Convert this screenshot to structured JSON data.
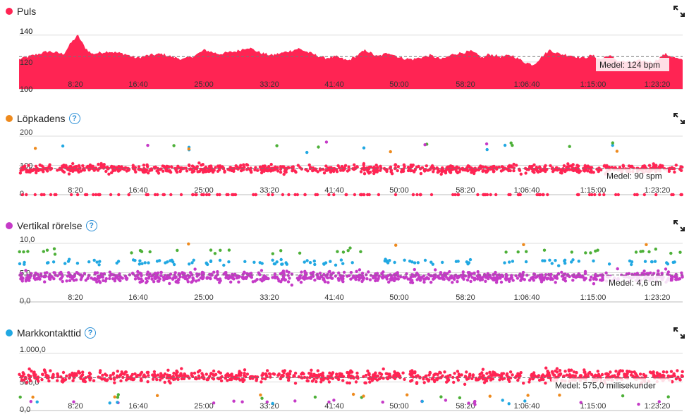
{
  "x_tick_labels": [
    "8:20",
    "16:40",
    "25:00",
    "33:20",
    "41:40",
    "50:00",
    "58:20",
    "1:06:40",
    "1:15:00",
    "1:23:20"
  ],
  "colors": {
    "pink": "#ff2453",
    "orange": "#ee8a1d",
    "green": "#4db038",
    "blue": "#21a8e2",
    "purple": "#c53ac7"
  },
  "panels": [
    {
      "title": "Puls",
      "color": "#ff2453",
      "help": false,
      "y_ticks": [
        "140",
        "120",
        "100"
      ],
      "avg_label": "Medel: 124 bpm"
    },
    {
      "title": "Löpkadens",
      "color": "#ee8a1d",
      "help": true,
      "y_ticks": [
        "200",
        "100",
        "0"
      ],
      "avg_label": "Medel: 90 spm"
    },
    {
      "title": "Vertikal rörelse",
      "color": "#c53ac7",
      "help": true,
      "y_ticks": [
        "10,0",
        "5,0",
        "0,0"
      ],
      "avg_label": "Medel: 4,6 cm"
    },
    {
      "title": "Markkontakttid",
      "color": "#21a8e2",
      "help": true,
      "y_ticks": [
        "1.000,0",
        "500,0",
        "0,0"
      ],
      "avg_label": "Medel: 575,0 millisekunder"
    }
  ],
  "chart_data": [
    {
      "type": "area",
      "title": "Puls",
      "x_unit": "tid",
      "x_range_seconds": [
        0,
        5650
      ],
      "ylim": [
        100,
        142
      ],
      "average": 124,
      "avg_label": "Medel: 124 bpm",
      "x_ticks": [
        "8:20",
        "16:40",
        "25:00",
        "33:20",
        "41:40",
        "50:00",
        "58:20",
        "1:06:40",
        "1:15:00",
        "1:23:20"
      ],
      "y_ticks": [
        140,
        120,
        100
      ],
      "keypoints": [
        [
          0,
          122
        ],
        [
          120,
          125
        ],
        [
          250,
          128
        ],
        [
          380,
          126
        ],
        [
          440,
          134
        ],
        [
          500,
          140
        ],
        [
          560,
          131
        ],
        [
          620,
          126
        ],
        [
          760,
          128
        ],
        [
          900,
          126
        ],
        [
          1000,
          123
        ],
        [
          1100,
          125
        ],
        [
          1220,
          126
        ],
        [
          1300,
          124
        ],
        [
          1400,
          122
        ],
        [
          1500,
          125
        ],
        [
          1580,
          129
        ],
        [
          1700,
          126
        ],
        [
          1850,
          128
        ],
        [
          1950,
          131
        ],
        [
          2050,
          127
        ],
        [
          2150,
          125
        ],
        [
          2250,
          127
        ],
        [
          2380,
          130
        ],
        [
          2500,
          126
        ],
        [
          2600,
          123
        ],
        [
          2700,
          124
        ],
        [
          2800,
          121
        ],
        [
          2880,
          125
        ],
        [
          2950,
          129
        ],
        [
          3050,
          124
        ],
        [
          3150,
          127
        ],
        [
          3250,
          123
        ],
        [
          3350,
          122
        ],
        [
          3500,
          125
        ],
        [
          3600,
          122
        ],
        [
          3700,
          126
        ],
        [
          3850,
          128
        ],
        [
          3950,
          123
        ],
        [
          4000,
          126
        ],
        [
          4100,
          124
        ],
        [
          4200,
          125
        ],
        [
          4300,
          120
        ],
        [
          4380,
          118
        ],
        [
          4450,
          124
        ],
        [
          4520,
          129
        ],
        [
          4600,
          126
        ],
        [
          4700,
          125
        ],
        [
          4800,
          123
        ],
        [
          4880,
          125
        ],
        [
          4950,
          122
        ],
        [
          5020,
          125
        ],
        [
          5100,
          121
        ],
        [
          5200,
          120
        ],
        [
          5300,
          121
        ],
        [
          5400,
          120
        ],
        [
          5450,
          123
        ],
        [
          5500,
          126
        ],
        [
          5560,
          124
        ],
        [
          5650,
          121
        ]
      ]
    },
    {
      "type": "scatter",
      "title": "Löpkadens",
      "ylim": [
        0,
        200
      ],
      "average": 90,
      "avg_label": "Medel: 90 spm",
      "x_ticks": [
        "8:20",
        "16:40",
        "25:00",
        "33:20",
        "41:40",
        "50:00",
        "58:20",
        "1:06:40",
        "1:15:00",
        "1:23:20"
      ],
      "y_ticks": [
        200,
        100,
        0
      ],
      "series": [
        {
          "color": "#ff2453",
          "count": 900,
          "center": 88,
          "spread": 14
        },
        {
          "color": "#ff2453",
          "count": 120,
          "fixed_value": 0
        },
        {
          "color": "#21a8e2",
          "count": 8,
          "center": 160,
          "spread": 12
        },
        {
          "color": "#4db038",
          "count": 8,
          "center": 170,
          "spread": 12
        },
        {
          "color": "#ee8a1d",
          "count": 4,
          "center": 155,
          "spread": 10
        },
        {
          "color": "#c53ac7",
          "count": 4,
          "center": 170,
          "spread": 15
        }
      ]
    },
    {
      "type": "scatter",
      "title": "Vertikal rörelse",
      "ylim": [
        0,
        10
      ],
      "average": 4.6,
      "avg_label": "Medel: 4,6 cm",
      "x_ticks": [
        "8:20",
        "16:40",
        "25:00",
        "33:20",
        "41:40",
        "50:00",
        "58:20",
        "1:06:40",
        "1:15:00",
        "1:23:20"
      ],
      "y_ticks": [
        "10,0",
        "5,0",
        "0,0"
      ],
      "series": [
        {
          "color": "#c53ac7",
          "count": 900,
          "center": 4.3,
          "spread": 0.9
        },
        {
          "color": "#21a8e2",
          "count": 120,
          "center": 6.8,
          "spread": 0.5
        },
        {
          "color": "#4db038",
          "count": 40,
          "center": 8.6,
          "spread": 0.5
        },
        {
          "color": "#ee8a1d",
          "count": 4,
          "center": 9.8,
          "spread": 0.2
        }
      ]
    },
    {
      "type": "scatter",
      "title": "Markkontakttid",
      "ylim": [
        0,
        1050
      ],
      "average": 575,
      "avg_label": "Medel: 575,0 millisekunder",
      "x_ticks": [
        "8:20",
        "16:40",
        "25:00",
        "33:20",
        "41:40",
        "50:00",
        "58:20",
        "1:06:40",
        "1:15:00",
        "1:23:20"
      ],
      "y_ticks": [
        "1.000,0",
        "500,0",
        "0,0"
      ],
      "series": [
        {
          "color": "#ff2453",
          "count": 900,
          "center": 600,
          "spread": 100
        },
        {
          "color": "#c53ac7",
          "count": 20,
          "center": 150,
          "spread": 40
        },
        {
          "color": "#4db038",
          "count": 10,
          "center": 240,
          "spread": 30
        },
        {
          "color": "#ee8a1d",
          "count": 10,
          "center": 260,
          "spread": 30
        },
        {
          "color": "#21a8e2",
          "count": 8,
          "center": 150,
          "spread": 40
        }
      ]
    }
  ]
}
